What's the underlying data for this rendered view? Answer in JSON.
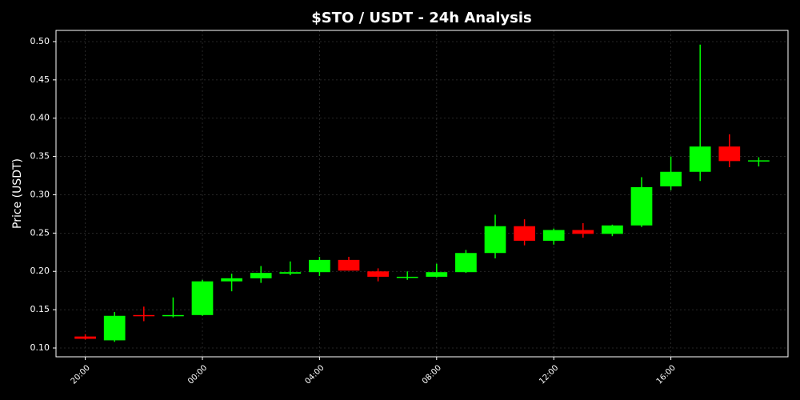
{
  "chart_data": {
    "type": "candlestick",
    "title": "$STO / USDT - 24h Analysis",
    "ylabel": "Price (USDT)",
    "categories": [
      "20:00",
      null,
      null,
      null,
      "00:00",
      null,
      null,
      null,
      "04:00",
      null,
      null,
      null,
      "08:00",
      null,
      null,
      null,
      "12:00",
      null,
      null,
      null,
      "16:00",
      null,
      null,
      null
    ],
    "open": [
      0.115,
      0.11,
      0.143,
      0.142,
      0.143,
      0.187,
      0.191,
      0.197,
      0.199,
      0.215,
      0.2,
      0.192,
      0.193,
      0.199,
      0.224,
      0.259,
      0.24,
      0.254,
      0.249,
      0.26,
      0.311,
      0.33,
      0.363,
      0.344
    ],
    "high": [
      0.118,
      0.147,
      0.154,
      0.166,
      0.189,
      0.197,
      0.207,
      0.213,
      0.219,
      0.219,
      0.204,
      0.2,
      0.21,
      0.228,
      0.274,
      0.268,
      0.256,
      0.263,
      0.261,
      0.323,
      0.35,
      0.496,
      0.379,
      0.349
    ],
    "low": [
      0.111,
      0.108,
      0.135,
      0.14,
      0.142,
      0.174,
      0.185,
      0.195,
      0.194,
      0.201,
      0.187,
      0.189,
      0.192,
      0.198,
      0.217,
      0.234,
      0.235,
      0.244,
      0.246,
      0.258,
      0.306,
      0.318,
      0.336,
      0.337
    ],
    "close": [
      0.112,
      0.142,
      0.142,
      0.143,
      0.187,
      0.191,
      0.198,
      0.199,
      0.215,
      0.201,
      0.193,
      0.193,
      0.199,
      0.224,
      0.259,
      0.24,
      0.254,
      0.249,
      0.26,
      0.31,
      0.33,
      0.363,
      0.344,
      0.345
    ],
    "up_color": "#00ff00",
    "down_color": "#ff0000",
    "ylim": [
      0.0885,
      0.5146
    ],
    "yticks": [
      {
        "value": 0.1,
        "label": "0.10"
      },
      {
        "value": 0.15,
        "label": "0.15"
      },
      {
        "value": 0.2,
        "label": "0.20"
      },
      {
        "value": 0.25,
        "label": "0.25"
      },
      {
        "value": 0.3,
        "label": "0.30"
      },
      {
        "value": 0.35,
        "label": "0.35"
      },
      {
        "value": 0.4,
        "label": "0.40"
      },
      {
        "value": 0.45,
        "label": "0.45"
      },
      {
        "value": 0.5,
        "label": "0.50"
      }
    ],
    "grid": true
  }
}
